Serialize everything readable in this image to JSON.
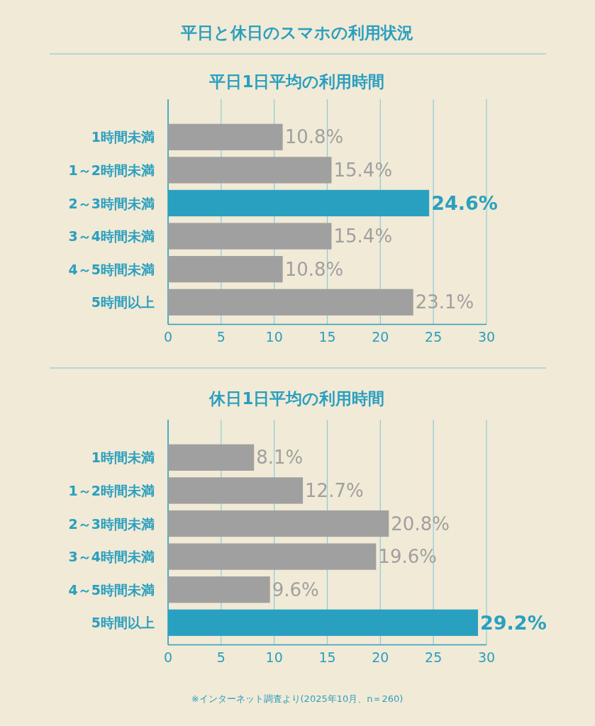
{
  "chart_data": [
    {
      "type": "bar",
      "orientation": "horizontal",
      "title": "平日と休日のスマホの利用状況",
      "subtitle": "平日1日平均の利用時間",
      "categories": [
        "1時間未満",
        "1～2時間未満",
        "2～3時間未満",
        "3～4時間未満",
        "4～5時間未満",
        "5時間以上"
      ],
      "values": [
        10.8,
        15.4,
        24.6,
        15.4,
        10.8,
        23.1
      ],
      "colors": [
        "#a0a0a0",
        "#a0a0a0",
        "#2aa0c0",
        "#a0a0a0",
        "#a0a0a0",
        "#a0a0a0"
      ],
      "value_labels": [
        "10.8%",
        "15.4%",
        "24.6%",
        "15.4%",
        "10.8%",
        "23.1%"
      ],
      "xlim": [
        0,
        30
      ],
      "xticks": [
        0,
        5,
        10,
        15,
        20,
        25,
        30
      ],
      "grid": "x"
    },
    {
      "type": "bar",
      "orientation": "horizontal",
      "title": "休日1日平均の利用時間",
      "categories": [
        "1時間未満",
        "1～2時間未満",
        "2～3時間未満",
        "3～4時間未満",
        "4～5時間未満",
        "5時間以上"
      ],
      "values": [
        8.1,
        12.7,
        20.8,
        19.6,
        9.6,
        29.2
      ],
      "colors": [
        "#a0a0a0",
        "#a0a0a0",
        "#a0a0a0",
        "#a0a0a0",
        "#a0a0a0",
        "#2aa0c0"
      ],
      "value_labels": [
        "8.1%",
        "12.7%",
        "20.8%",
        "19.6%",
        "9.6%",
        "29.2%"
      ],
      "xlim": [
        0,
        30
      ],
      "xticks": [
        0,
        5,
        10,
        15,
        20,
        25,
        30
      ],
      "grid": "x",
      "annotations": [
        "※インターネット調査より(2025年10月、n＝260)"
      ]
    }
  ]
}
